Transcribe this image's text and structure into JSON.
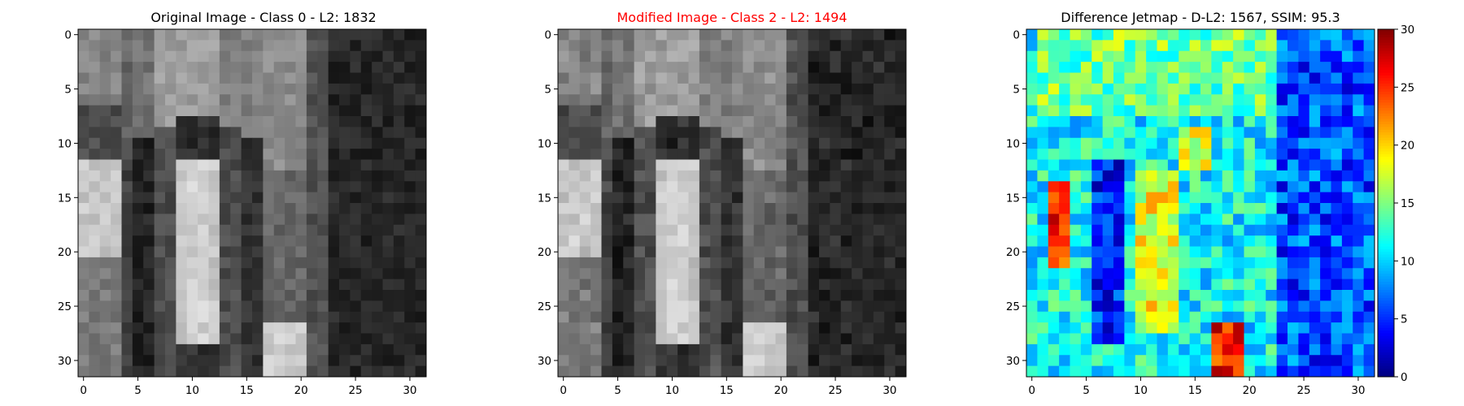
{
  "chart_data": [
    {
      "type": "heatmap",
      "title": "Original Image - Class 0 - L2: 1832",
      "title_color": "#000000",
      "colormap": "gray",
      "x_ticks": [
        "0",
        "5",
        "10",
        "15",
        "20",
        "25",
        "30"
      ],
      "y_ticks": [
        "0",
        "5",
        "10",
        "15",
        "20",
        "25",
        "30"
      ],
      "xlim": [
        -0.5,
        31.5
      ],
      "ylim": [
        31.5,
        -0.5
      ],
      "grid_size": [
        32,
        32
      ]
    },
    {
      "type": "heatmap",
      "title": "Modified Image - Class 2 - L2: 1494",
      "title_color": "#ff0000",
      "colormap": "gray",
      "x_ticks": [
        "0",
        "5",
        "10",
        "15",
        "20",
        "25",
        "30"
      ],
      "y_ticks": [
        "0",
        "5",
        "10",
        "15",
        "20",
        "25",
        "30"
      ],
      "xlim": [
        -0.5,
        31.5
      ],
      "ylim": [
        31.5,
        -0.5
      ],
      "grid_size": [
        32,
        32
      ]
    },
    {
      "type": "heatmap",
      "title": "Difference Jetmap - D-L2: 1567, SSIM: 95.3",
      "title_color": "#000000",
      "colormap": "jet",
      "x_ticks": [
        "0",
        "5",
        "10",
        "15",
        "20",
        "25",
        "30"
      ],
      "y_ticks": [
        "0",
        "5",
        "10",
        "15",
        "20",
        "25",
        "30"
      ],
      "xlim": [
        -0.5,
        31.5
      ],
      "ylim": [
        31.5,
        -0.5
      ],
      "grid_size": [
        32,
        32
      ],
      "colorbar": {
        "range": [
          0,
          30
        ],
        "ticks": [
          "0",
          "5",
          "10",
          "15",
          "20",
          "25",
          "30"
        ]
      }
    }
  ]
}
